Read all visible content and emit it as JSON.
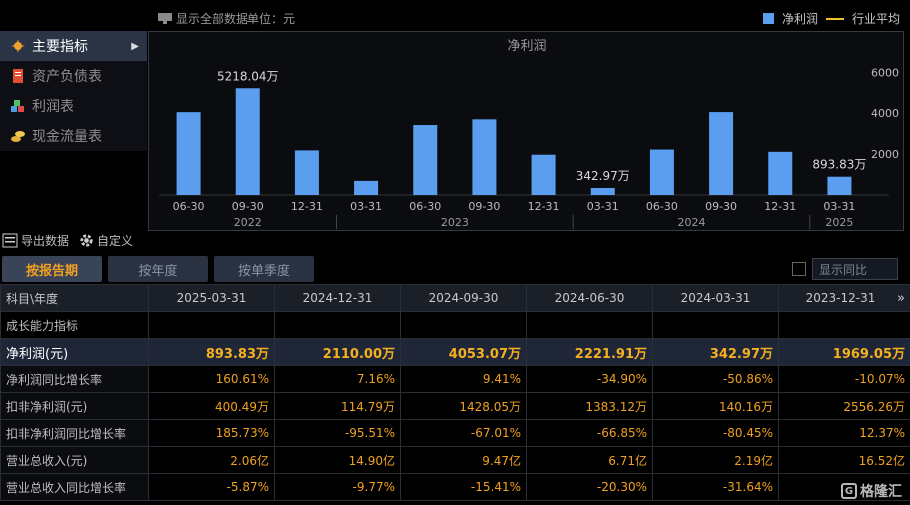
{
  "topbar": {
    "show_all": "显示全部数据",
    "unit": "单位：元",
    "legend_bar": "净利润",
    "legend_line": "行业平均"
  },
  "menu": [
    {
      "label": "主要指标",
      "icon": "star-icon",
      "active": true
    },
    {
      "label": "资产负债表",
      "icon": "document-icon",
      "active": false
    },
    {
      "label": "利润表",
      "icon": "cubes-icon",
      "active": false
    },
    {
      "label": "现金流量表",
      "icon": "coins-icon",
      "active": false
    }
  ],
  "chart_data": {
    "type": "bar",
    "title": "净利润",
    "categories": [
      "06-30",
      "09-30",
      "12-31",
      "03-31",
      "06-30",
      "09-30",
      "12-31",
      "03-31",
      "06-30",
      "09-30",
      "12-31",
      "03-31"
    ],
    "years": [
      {
        "label": "2022",
        "span": [
          0,
          2
        ]
      },
      {
        "label": "2023",
        "span": [
          3,
          6
        ]
      },
      {
        "label": "2024",
        "span": [
          7,
          10
        ]
      },
      {
        "label": "2025",
        "span": [
          11,
          11
        ]
      }
    ],
    "series": [
      {
        "name": "净利润",
        "values": [
          4050,
          5218.04,
          2180,
          690,
          3420,
          3700,
          1969.05,
          342.97,
          2221.91,
          4053.07,
          2110.0,
          893.83
        ]
      }
    ],
    "data_labels": {
      "1": "5218.04万",
      "7": "342.97万",
      "11": "893.83万"
    },
    "yticks": [
      2000,
      4000,
      6000
    ],
    "ylim": [
      0,
      6600
    ],
    "color": "#5b9ef0"
  },
  "tools": {
    "export": "导出数据",
    "custom": "自定义"
  },
  "tabs": {
    "by_period": "按报告期",
    "by_year": "按年度",
    "by_quarter": "按单季度"
  },
  "yoy_label": "显示同比",
  "table": {
    "header_first": "科目\\年度",
    "columns": [
      "2025-03-31",
      "2024-12-31",
      "2024-09-30",
      "2024-06-30",
      "2024-03-31",
      "2023-12-31"
    ],
    "more": "»",
    "section": "成长能力指标",
    "rows": [
      {
        "label": "净利润(元)",
        "values": [
          "893.83万",
          "2110.00万",
          "4053.07万",
          "2221.91万",
          "342.97万",
          "1969.05万"
        ]
      },
      {
        "label": "净利润同比增长率",
        "values": [
          "160.61%",
          "7.16%",
          "9.41%",
          "-34.90%",
          "-50.86%",
          "-10.07%"
        ]
      },
      {
        "label": "扣非净利润(元)",
        "values": [
          "400.49万",
          "114.79万",
          "1428.05万",
          "1383.12万",
          "140.16万",
          "2556.26万"
        ]
      },
      {
        "label": "扣非净利润同比增长率",
        "values": [
          "185.73%",
          "-95.51%",
          "-67.01%",
          "-66.85%",
          "-80.45%",
          "12.37%"
        ]
      },
      {
        "label": "营业总收入(元)",
        "values": [
          "2.06亿",
          "14.90亿",
          "9.47亿",
          "6.71亿",
          "2.19亿",
          "16.52亿"
        ]
      },
      {
        "label": "营业总收入同比增长率",
        "values": [
          "-5.87%",
          "-9.77%",
          "-15.41%",
          "-20.30%",
          "-31.64%",
          ""
        ]
      }
    ]
  },
  "watermark": "格隆汇"
}
